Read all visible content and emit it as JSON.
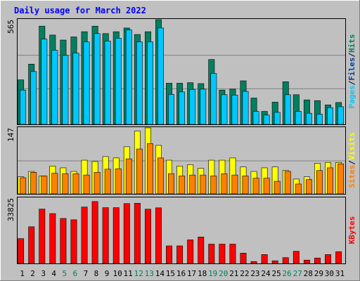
{
  "chart_data": [
    {
      "type": "bar",
      "title": "Daily usage for March 2022",
      "categories": [
        "1",
        "2",
        "3",
        "4",
        "5",
        "6",
        "7",
        "8",
        "9",
        "10",
        "11",
        "12",
        "13",
        "14",
        "15",
        "16",
        "17",
        "18",
        "19",
        "20",
        "21",
        "22",
        "23",
        "24",
        "25",
        "26",
        "27",
        "28",
        "29",
        "30",
        "31"
      ],
      "weekend_days": [
        "5",
        "6",
        "12",
        "13",
        "19",
        "20",
        "26",
        "27"
      ],
      "ylim": [
        0,
        565
      ],
      "ymax_label": "565",
      "series": [
        {
          "name": "Hits",
          "color": "#008060",
          "values": [
            240,
            325,
            530,
            482,
            455,
            472,
            500,
            530,
            490,
            500,
            520,
            485,
            500,
            565,
            222,
            222,
            225,
            220,
            350,
            185,
            190,
            235,
            142,
            70,
            120,
            230,
            160,
            132,
            128,
            105,
            118
          ]
        },
        {
          "name": "Files",
          "color": "#0040a0",
          "values": [
            185,
            285,
            460,
            400,
            372,
            385,
            445,
            490,
            450,
            465,
            510,
            445,
            445,
            520,
            162,
            175,
            188,
            190,
            275,
            160,
            158,
            178,
            70,
            50,
            65,
            160,
            70,
            60,
            55,
            90,
            95
          ]
        },
        {
          "name": "Pages",
          "color": "#00c8ff",
          "values": [
            185,
            285,
            460,
            400,
            372,
            385,
            445,
            490,
            450,
            465,
            510,
            445,
            445,
            520,
            162,
            175,
            188,
            190,
            275,
            160,
            158,
            178,
            70,
            50,
            65,
            160,
            70,
            60,
            55,
            90,
            95
          ]
        }
      ],
      "ylabel_parts": [
        {
          "text": "Pages",
          "color": "#00c8ff"
        },
        {
          "text": "Files",
          "color": "#0040a0"
        },
        {
          "text": "Hits",
          "color": "#008060"
        }
      ]
    },
    {
      "type": "bar",
      "categories": [
        "1",
        "2",
        "3",
        "4",
        "5",
        "6",
        "7",
        "8",
        "9",
        "10",
        "11",
        "12",
        "13",
        "14",
        "15",
        "16",
        "17",
        "18",
        "19",
        "20",
        "21",
        "22",
        "23",
        "24",
        "25",
        "26",
        "27",
        "28",
        "29",
        "30",
        "31"
      ],
      "ylim": [
        0,
        147
      ],
      "ymax_label": "147",
      "series": [
        {
          "name": "Visits",
          "color": "#ffff00",
          "values": [
            38,
            50,
            40,
            62,
            58,
            50,
            75,
            72,
            83,
            80,
            105,
            140,
            147,
            108,
            75,
            62,
            65,
            57,
            75,
            75,
            80,
            60,
            50,
            58,
            60,
            52,
            33,
            38,
            68,
            70,
            70
          ]
        },
        {
          "name": "Sites",
          "color": "#ff8000",
          "values": [
            36,
            48,
            40,
            46,
            45,
            45,
            42,
            48,
            55,
            56,
            78,
            100,
            112,
            80,
            45,
            40,
            42,
            42,
            40,
            45,
            42,
            40,
            35,
            35,
            28,
            50,
            22,
            32,
            52,
            58,
            67
          ]
        }
      ],
      "ylabel_parts": [
        {
          "text": "Sites",
          "color": "#ff8000"
        },
        {
          "text": "Visits",
          "color": "#ffff00"
        }
      ]
    },
    {
      "type": "bar",
      "categories": [
        "1",
        "2",
        "3",
        "4",
        "5",
        "6",
        "7",
        "8",
        "9",
        "10",
        "11",
        "12",
        "13",
        "14",
        "15",
        "16",
        "17",
        "18",
        "19",
        "20",
        "21",
        "22",
        "23",
        "24",
        "25",
        "26",
        "27",
        "28",
        "29",
        "30",
        "31"
      ],
      "ylim": [
        0,
        33825
      ],
      "ymax_label": "33825",
      "series": [
        {
          "name": "KBytes",
          "color": "#ff0000",
          "values": [
            12850,
            18990,
            28150,
            25800,
            23300,
            22600,
            29200,
            32060,
            28890,
            28890,
            30990,
            31170,
            28080,
            28800,
            9100,
            9100,
            12200,
            13680,
            10000,
            10000,
            10000,
            5350,
            1000,
            4620,
            1370,
            3010,
            6300,
            1740,
            2800,
            4600,
            6100
          ]
        }
      ],
      "ylabel_parts": [
        {
          "text": "KBytes",
          "color": "#ff0000"
        }
      ]
    }
  ],
  "colors": {
    "background": "#c0c0c0",
    "plot_border": "#000000",
    "title": "#0000ff",
    "weekday_label": "#000000",
    "weekend_label": "#008060",
    "gridline": "#808080"
  }
}
